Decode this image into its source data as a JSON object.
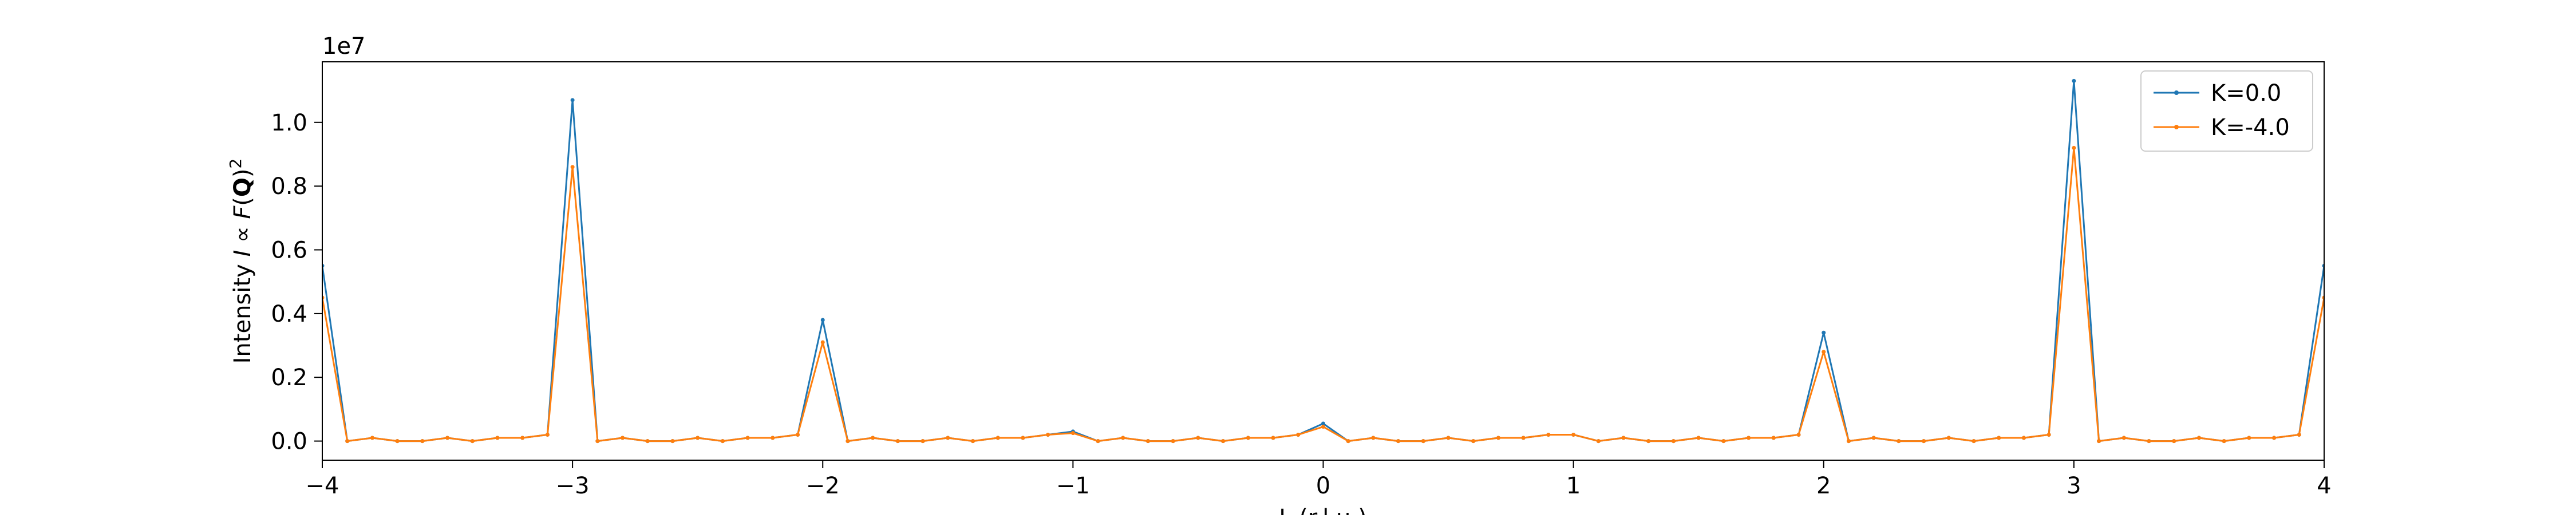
{
  "chart_data": {
    "type": "line",
    "title": "",
    "xlabel": "L (r.l.u.)",
    "ylabel": "Intensity I ∝ F(Q)²",
    "ylabel_parts": {
      "word": "Intensity",
      "var": "I",
      "prop": " ∝ ",
      "fn": "F",
      "open": "(",
      "q": "Q",
      "close": ")",
      "sup": "2"
    },
    "y_offset_label": "1e7",
    "y_scale_factor": 10000000,
    "xlim": [
      -4,
      4
    ],
    "ylim": [
      -0.06,
      1.19
    ],
    "x_ticks": [
      -4,
      -3,
      -2,
      -1,
      0,
      1,
      2,
      3,
      4
    ],
    "x_tick_labels": [
      "−4",
      "−3",
      "−2",
      "−1",
      "0",
      "1",
      "2",
      "3",
      "4"
    ],
    "y_ticks": [
      0.0,
      0.2,
      0.4,
      0.6,
      0.8,
      1.0
    ],
    "y_tick_labels": [
      "0.0",
      "0.2",
      "0.4",
      "0.6",
      "0.8",
      "1.0"
    ],
    "grid": false,
    "legend_position": "top-right",
    "x": [
      -4.0,
      -3.9,
      -3.8,
      -3.7,
      -3.6,
      -3.5,
      -3.4,
      -3.3,
      -3.2,
      -3.1,
      -3.0,
      -2.9,
      -2.8,
      -2.7,
      -2.6,
      -2.5,
      -2.4,
      -2.3,
      -2.2,
      -2.1,
      -2.0,
      -1.9,
      -1.8,
      -1.7,
      -1.6,
      -1.5,
      -1.4,
      -1.3,
      -1.2,
      -1.1,
      -1.0,
      -0.9,
      -0.8,
      -0.7,
      -0.6,
      -0.5,
      -0.4,
      -0.3,
      -0.2,
      -0.1,
      0.0,
      0.1,
      0.2,
      0.3,
      0.4,
      0.5,
      0.6,
      0.7,
      0.8,
      0.9,
      1.0,
      1.1,
      1.2,
      1.3,
      1.4,
      1.5,
      1.6,
      1.7,
      1.8,
      1.9,
      2.0,
      2.1,
      2.2,
      2.3,
      2.4,
      2.5,
      2.6,
      2.7,
      2.8,
      2.9,
      3.0,
      3.1,
      3.2,
      3.3,
      3.4,
      3.5,
      3.6,
      3.7,
      3.8,
      3.9,
      4.0
    ],
    "series": [
      {
        "name": "K=0.0",
        "color": "#1f77b4",
        "values": [
          0.55,
          0.0,
          0.01,
          0.0,
          0.0,
          0.01,
          0.0,
          0.01,
          0.01,
          0.02,
          1.07,
          0.0,
          0.01,
          0.0,
          0.0,
          0.01,
          0.0,
          0.01,
          0.01,
          0.02,
          0.38,
          0.0,
          0.01,
          0.0,
          0.0,
          0.01,
          0.0,
          0.01,
          0.01,
          0.02,
          0.03,
          0.0,
          0.01,
          0.0,
          0.0,
          0.01,
          0.0,
          0.01,
          0.01,
          0.02,
          0.055,
          0.0,
          0.01,
          0.0,
          0.0,
          0.01,
          0.0,
          0.01,
          0.01,
          0.02,
          0.02,
          0.0,
          0.01,
          0.0,
          0.0,
          0.01,
          0.0,
          0.01,
          0.01,
          0.02,
          0.34,
          0.0,
          0.01,
          0.0,
          0.0,
          0.01,
          0.0,
          0.01,
          0.01,
          0.02,
          1.13,
          0.0,
          0.01,
          0.0,
          0.0,
          0.01,
          0.0,
          0.01,
          0.01,
          0.02,
          0.55
        ]
      },
      {
        "name": "K=-4.0",
        "color": "#ff7f0e",
        "values": [
          0.45,
          0.0,
          0.01,
          0.0,
          0.0,
          0.01,
          0.0,
          0.01,
          0.01,
          0.02,
          0.86,
          0.0,
          0.01,
          0.0,
          0.0,
          0.01,
          0.0,
          0.01,
          0.01,
          0.02,
          0.31,
          0.0,
          0.01,
          0.0,
          0.0,
          0.01,
          0.0,
          0.01,
          0.01,
          0.02,
          0.025,
          0.0,
          0.01,
          0.0,
          0.0,
          0.01,
          0.0,
          0.01,
          0.01,
          0.02,
          0.045,
          0.0,
          0.01,
          0.0,
          0.0,
          0.01,
          0.0,
          0.01,
          0.01,
          0.02,
          0.02,
          0.0,
          0.01,
          0.0,
          0.0,
          0.01,
          0.0,
          0.01,
          0.01,
          0.02,
          0.28,
          0.0,
          0.01,
          0.0,
          0.0,
          0.01,
          0.0,
          0.01,
          0.01,
          0.02,
          0.92,
          0.0,
          0.01,
          0.0,
          0.0,
          0.01,
          0.0,
          0.01,
          0.01,
          0.02,
          0.45
        ]
      }
    ]
  }
}
